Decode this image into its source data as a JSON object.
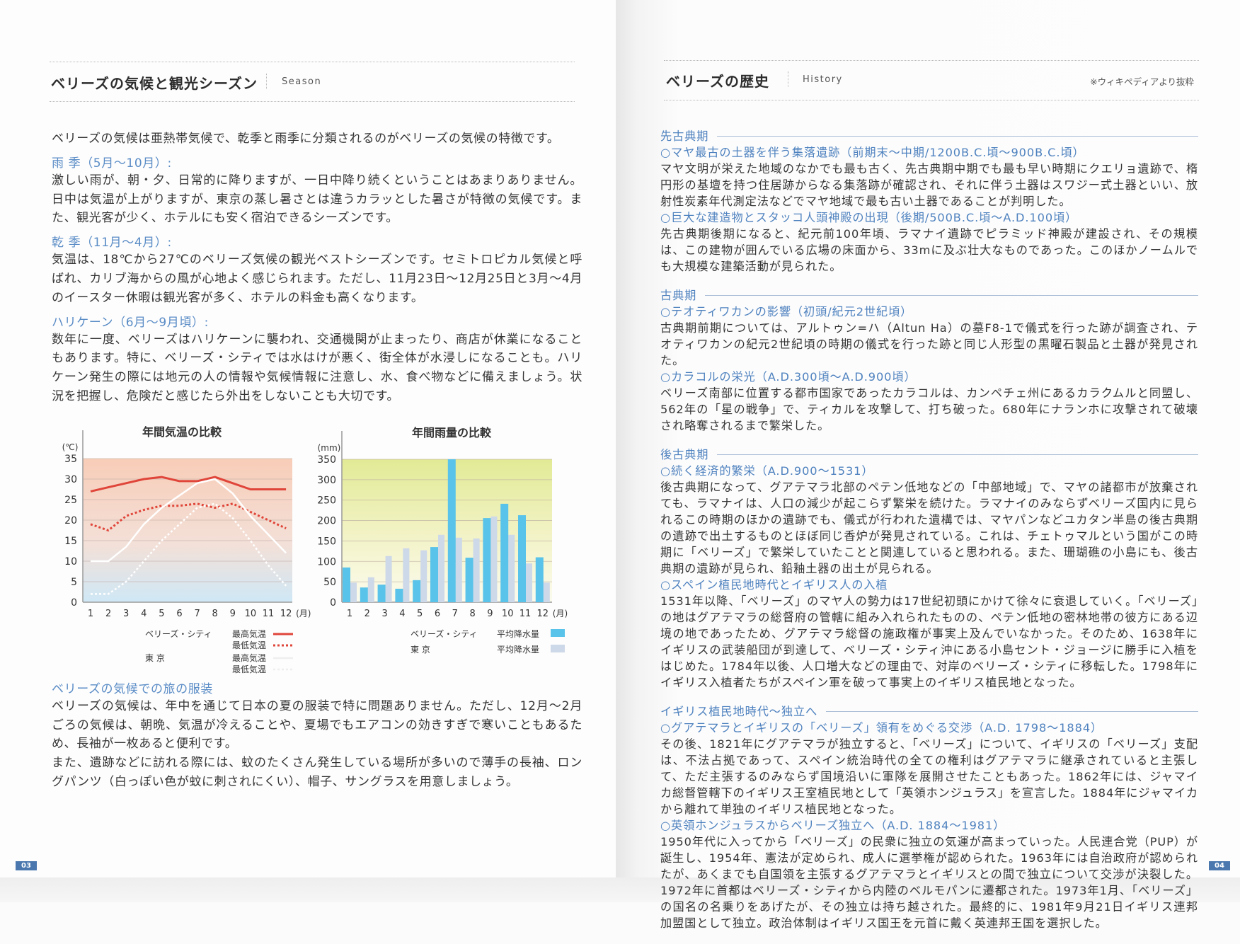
{
  "left_page": {
    "title": "ベリーズの気候と観光シーズン",
    "title_en": "Season",
    "intro": "ベリーズの気候は亜熱帯気候で、乾季と雨季に分類されるのがベリーズの気候の特徴です。",
    "sections": [
      {
        "heading": "雨 季（5月～10月）:",
        "body": "激しい雨が、朝・夕、日常的に降りますが、一日中降り続くということはあまりありません。日中は気温が上がりますが、東京の蒸し暑さとは違うカラッとした暑さが特徴の気候です。また、観光客が少く、ホテルにも安く宿泊できるシーズンです。"
      },
      {
        "heading": "乾 季（11月～4月）:",
        "body": "気温は、18℃から27℃のベリーズ気候の観光ベストシーズンです。セミトロピカル気候と呼ばれ、カリブ海からの風が心地よく感じられます。ただし、11月23日～12月25日と3月～4月のイースター休暇は観光客が多く、ホテルの料金も高くなります。"
      },
      {
        "heading": "ハリケーン（6月～9月頃）:",
        "body": "数年に一度、ベリーズはハリケーンに襲われ、交通機関が止まったり、商店が休業になることもあります。特に、ベリーズ・シティでは水はけが悪く、街全体が水浸しになることも。ハリケーン発生の際には地元の人の情報や気候情報に注意し、水、食べ物などに備えましょう。状況を把握し、危険だと感じたら外出をしないことも大切です。"
      }
    ],
    "clothing": {
      "heading": "ベリーズの気候での旅の服装",
      "body1": "ベリーズの気候は、年中を通じて日本の夏の服装で特に問題ありません。ただし、12月～2月ごろの気候は、朝晩、気温が冷えることや、夏場でもエアコンの効きすぎで寒いこともあるため、長袖が一枚あると便利です。",
      "body2": "また、遺跡などに訪れる際には、蚊のたくさん発生している場所が多いので薄手の長袖、ロングパンツ（白っぽい色が蚊に刺されにくい）、帽子、サングラスを用意しましょう。"
    },
    "page_number": "03"
  },
  "chart_data": [
    {
      "type": "line",
      "title": "年間気温の比較",
      "ylabel": "(℃)",
      "xlabel": "(月)",
      "categories": [
        "1",
        "2",
        "3",
        "4",
        "5",
        "6",
        "7",
        "8",
        "9",
        "10",
        "11",
        "12"
      ],
      "yticks": [
        "0",
        "5",
        "10",
        "15",
        "20",
        "25",
        "30",
        "35"
      ],
      "ylim": [
        0,
        35
      ],
      "grid": true,
      "legend": {
        "groups": [
          {
            "city": "ベリーズ・シティ",
            "high": "最高気温",
            "low": "最低気温"
          },
          {
            "city": "東 京",
            "high": "最高気温",
            "low": "最低気温"
          }
        ]
      },
      "series": [
        {
          "name": "ベリーズ・シティ 最高気温",
          "style": "solid",
          "color": "#e0453a",
          "values": [
            27,
            28,
            29,
            30,
            30.5,
            29.5,
            29.5,
            30.5,
            29,
            27.5,
            27.5,
            27.5
          ]
        },
        {
          "name": "ベリーズ・シティ 最低気温",
          "style": "dotted",
          "color": "#e0453a",
          "values": [
            19,
            17.5,
            21,
            22.5,
            23.5,
            23.5,
            24,
            23,
            24,
            22,
            20,
            18
          ]
        },
        {
          "name": "東京 最高気温",
          "style": "solid",
          "color": "#ffffff",
          "values": [
            10,
            10,
            13.5,
            19,
            23,
            26,
            29,
            30,
            26.5,
            21,
            16.5,
            12
          ]
        },
        {
          "name": "東京 最低気温",
          "style": "dotted",
          "color": "#ffffff",
          "values": [
            2,
            2,
            5,
            10,
            15,
            19,
            23,
            24,
            20.5,
            15,
            9,
            4
          ]
        }
      ]
    },
    {
      "type": "bar",
      "title": "年間雨量の比較",
      "ylabel": "(mm)",
      "xlabel": "(月)",
      "categories": [
        "1",
        "2",
        "3",
        "4",
        "5",
        "6",
        "7",
        "8",
        "9",
        "10",
        "11",
        "12"
      ],
      "yticks": [
        "0",
        "50",
        "100",
        "150",
        "200",
        "250",
        "300",
        "350"
      ],
      "ylim": [
        0,
        350
      ],
      "grid": true,
      "legend": {
        "groups": [
          {
            "city": "ベリーズ・シティ",
            "label": "平均降水量"
          },
          {
            "city": "東 京",
            "label": "平均降水量"
          }
        ]
      },
      "series": [
        {
          "name": "ベリーズ・シティ 平均降水量",
          "color": "#5ac3e9",
          "values": [
            85,
            36,
            43,
            33,
            54,
            135,
            350,
            109,
            206,
            241,
            213,
            110
          ]
        },
        {
          "name": "東京 平均降水量",
          "color": "#cdd8e8",
          "values": [
            48,
            61,
            113,
            132,
            127,
            165,
            158,
            156,
            210,
            165,
            95,
            48
          ]
        }
      ]
    }
  ],
  "right_page": {
    "title": "ベリーズの歴史",
    "title_en": "History",
    "note": "※ウィキペディアより抜粋",
    "sections": [
      {
        "heading": "先古典期",
        "items": [
          {
            "sub": "○マヤ最古の土器を伴う集落遺跡（前期末～中期/1200B.C.頃～900B.C.頃）",
            "body": "マヤ文明が栄えた地域のなかでも最も古く、先古典期中期でも最も早い時期にクエリョ遺跡で、楕円形の基壇を持つ住居跡からなる集落跡が確認され、それに伴う土器はスワジー式土器といい、放射性炭素年代測定法などでマヤ地域で最も古い土器であることが判明した。"
          },
          {
            "sub": "○巨大な建造物とスタッコ人頭神殿の出現（後期/500B.C.頃～A.D.100頃）",
            "body": "先古典期後期になると、紀元前100年頃、ラマナイ遺跡でピラミッド神殿が建設され、その規模は、この建物が囲んでいる広場の床面から、33mに及ぶ壮大なものであった。このほかノームルでも大規模な建築活動が見られた。"
          }
        ]
      },
      {
        "heading": "古典期",
        "items": [
          {
            "sub": "○テオティワカンの影響（初頭/紀元2世紀頃）",
            "body": "古典期前期については、アルトゥン=ハ（Altun Ha）の墓F8-1で儀式を行った跡が調査され、テオティワカンの紀元2世紀頃の時期の儀式を行った跡と同じ人形型の黒曜石製品と土器が発見された。"
          },
          {
            "sub": "○カラコルの栄光（A.D.300頃～A.D.900頃）",
            "body": "ベリーズ南部に位置する都市国家であったカラコルは、カンペチェ州にあるカラクムルと同盟し、562年の「星の戦争」で、ティカルを攻撃して、打ち破った。680年にナランホに攻撃されて破壊され略奪されるまで繁栄した。"
          }
        ]
      },
      {
        "heading": "後古典期",
        "items": [
          {
            "sub": "○続く経済的繁栄（A.D.900～1531）",
            "body": "後古典期になって、グアテマラ北部のペテン低地などの「中部地域」で、マヤの諸都市が放棄されても、ラマナイは、人口の減少が起こらず繁栄を続けた。ラマナイのみならずベリーズ国内に見られるこの時期のほかの遺跡でも、儀式が行われた遺構では、マヤパンなどユカタン半島の後古典期の遺跡で出土するものとほぼ同じ香炉が発見されている。これは、チェトゥマルという国がこの時期に「ベリーズ」で繁栄していたことと関連していると思われる。また、珊瑚礁の小島にも、後古典期の遺跡が見られ、鉛釉土器の出土が見られる。"
          },
          {
            "sub": "○スペイン植民地時代とイギリス人の入植",
            "body": "1531年以降、「ベリーズ」のマヤ人の勢力は17世紀初頭にかけて徐々に衰退していく。「ベリーズ」の地はグアテマラの総督府の管轄に組み入れられたものの、ペテン低地の密林地帯の彼方にある辺境の地であったため、グアテマラ総督の施政権が事実上及んでいなかった。そのため、1638年にイギリスの武装船団が到達して、ベリーズ・シティ沖にある小島セント・ジョージに勝手に入植をはじめた。1784年以後、人口増大などの理由で、対岸のベリーズ・シティに移転した。1798年にイギリス入植者たちがスペイン軍を破って事実上のイギリス植民地となった。"
          }
        ]
      },
      {
        "heading": "イギリス植民地時代～独立へ",
        "items": [
          {
            "sub": "○グアテマラとイギリスの「ベリーズ」領有をめぐる交渉（A.D. 1798～1884）",
            "body": "その後、1821年にグアテマラが独立すると、「ベリーズ」について、イギリスの「ベリーズ」支配は、不法占拠であって、スペイン統治時代の全ての権利はグアテマラに継承されていると主張して、ただ主張するのみならず国境沿いに軍隊を展開させたこともあった。1862年には、ジャマイカ総督管轄下のイギリス王室植民地として「英領ホンジュラス」を宣言した。1884年にジャマイカから離れて単独のイギリス植民地となった。"
          },
          {
            "sub": "○英領ホンジュラスからベリーズ独立へ（A.D. 1884～1981）",
            "body": "1950年代に入ってから「ベリーズ」の民衆に独立の気運が高まっていった。人民連合党（PUP）が誕生し、1954年、憲法が定められ、成人に選挙権が認められた。1963年には自治政府が認められたが、あくまでも自国領を主張するグアテマラとイギリスとの間で独立について交渉が決裂した。1972年に首都はベリーズ・シティから内陸のベルモパンに遷都された。1973年1月、「ベリーズ」の国名の名乗りをあげたが、その独立は持ち越された。最終的に、1981年9月21日イギリス連邦加盟国として独立。政治体制はイギリス国王を元首に戴く英連邦王国を選択した。"
          }
        ]
      }
    ],
    "page_number": "04"
  }
}
